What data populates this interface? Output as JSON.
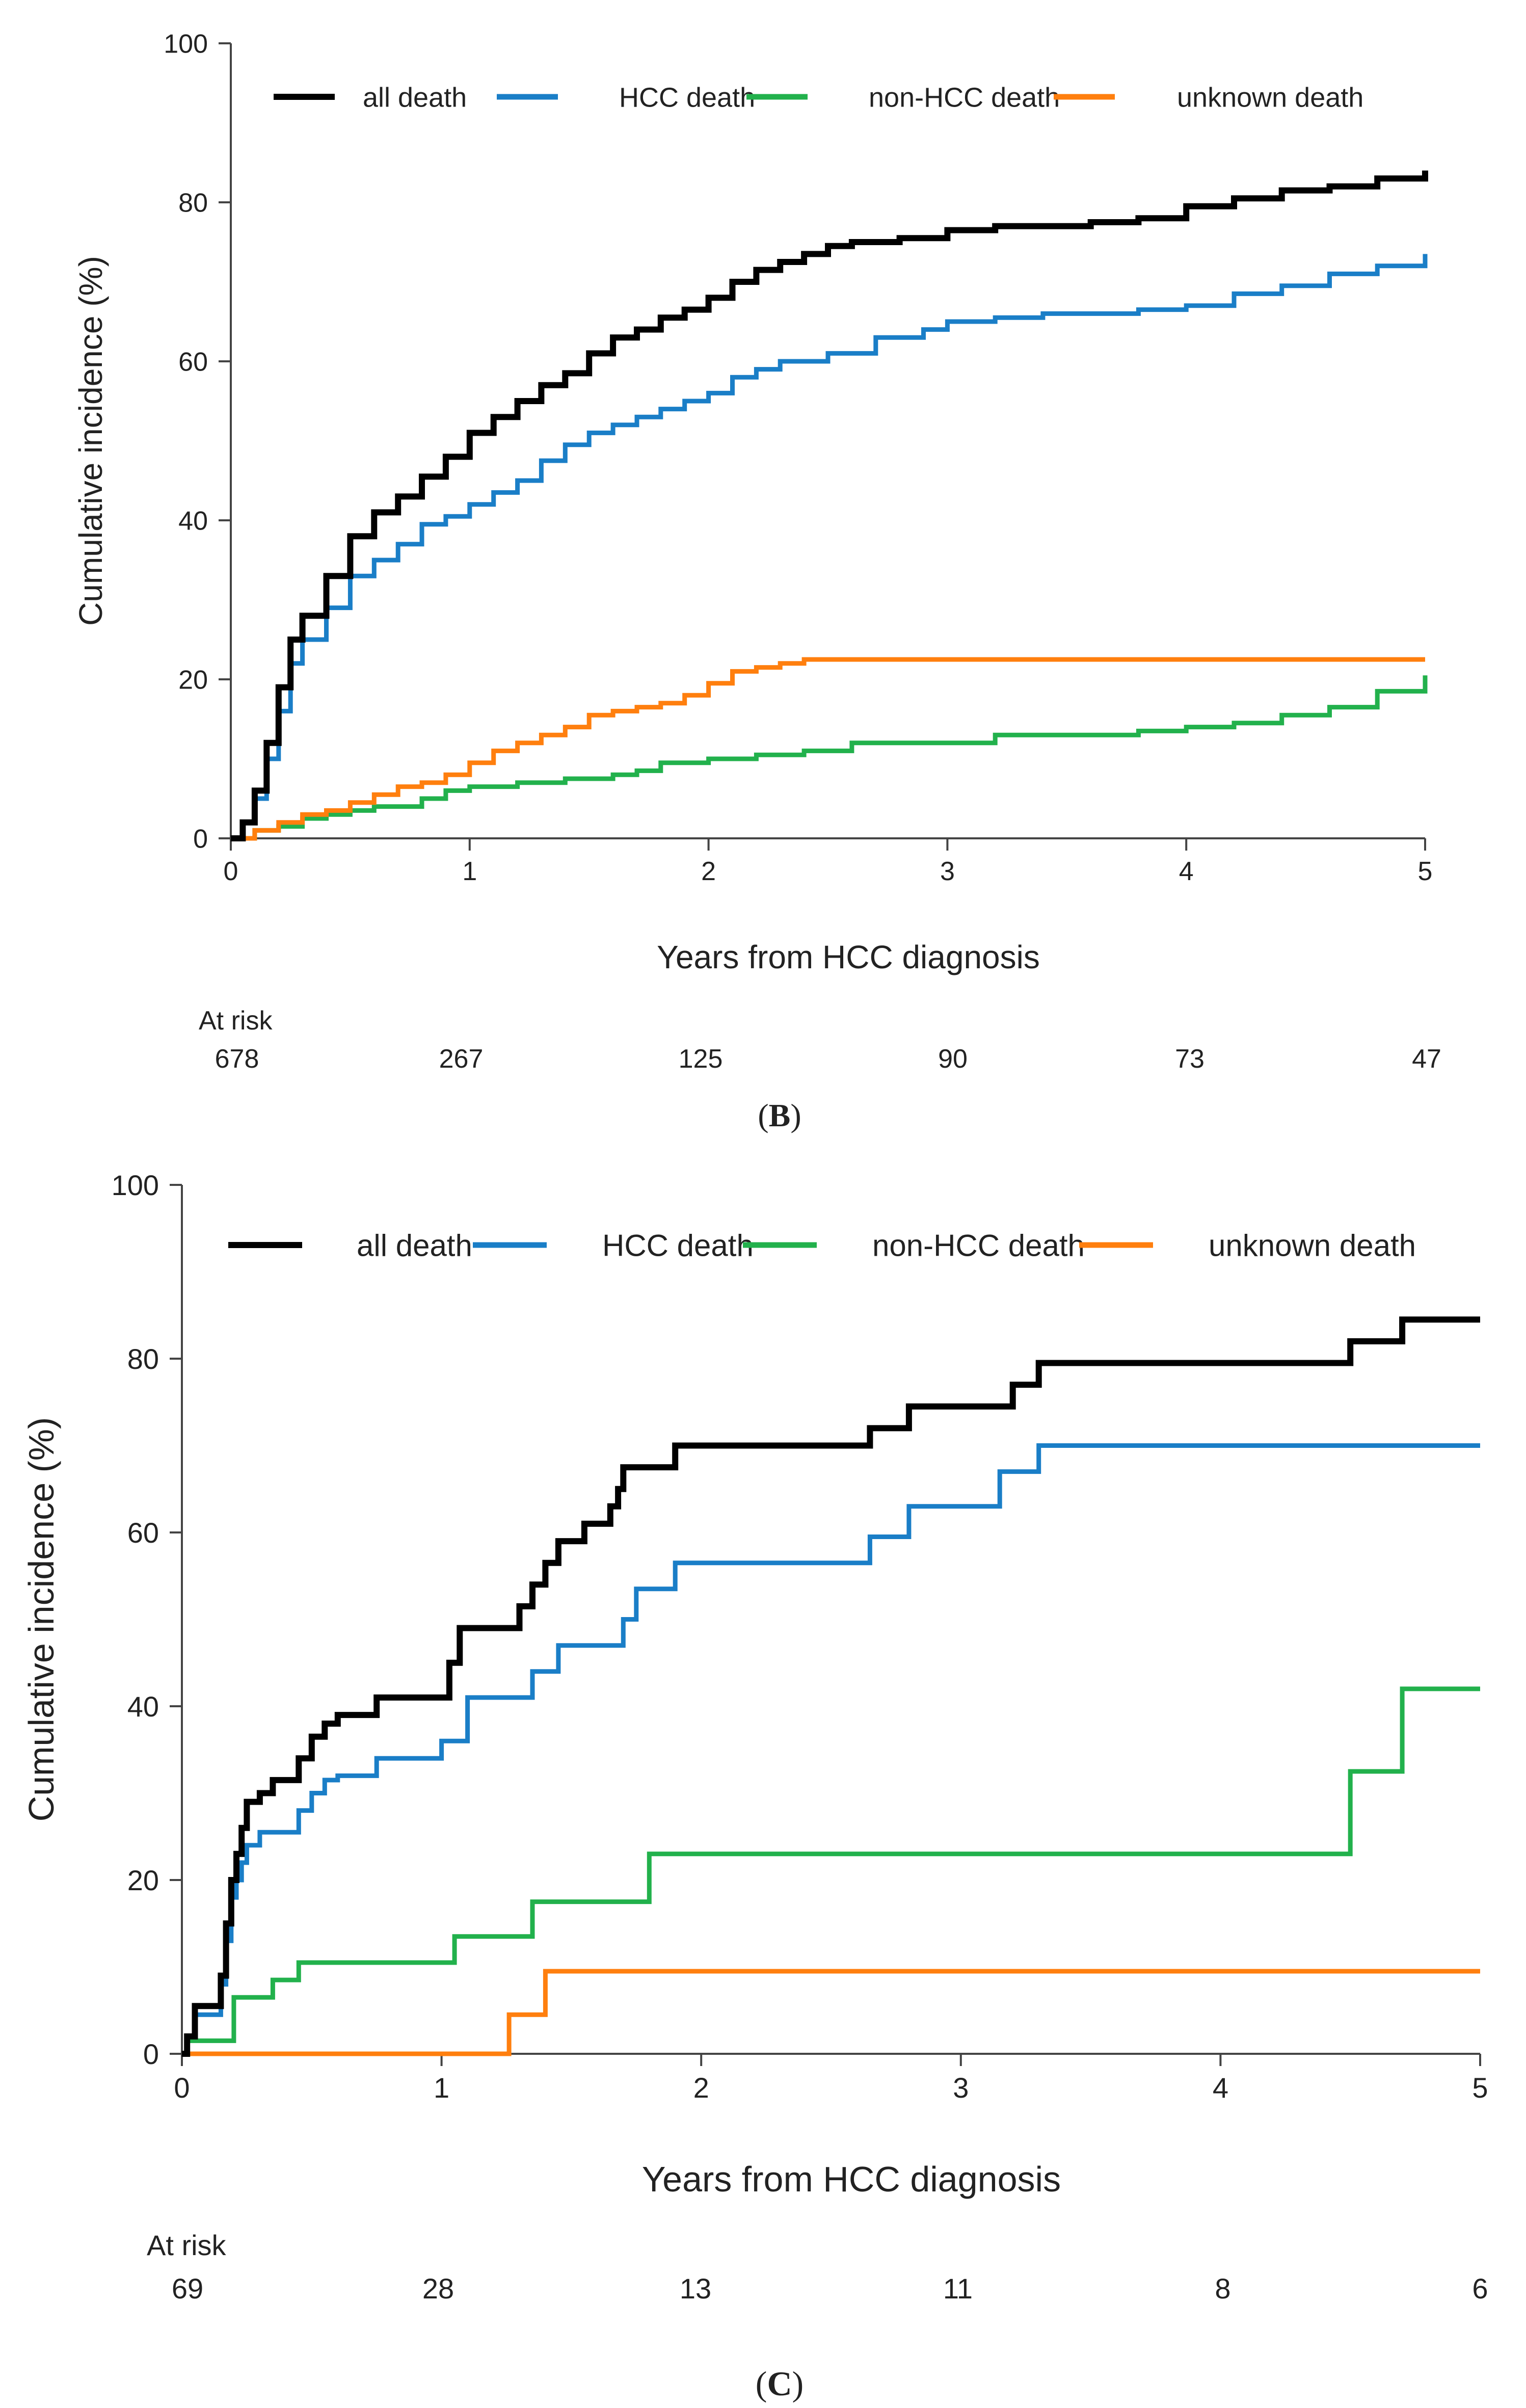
{
  "chart_data": [
    {
      "type": "line",
      "panel_label": "B",
      "title": "",
      "xlabel": "Years from HCC diagnosis",
      "ylabel": "Cumulative incidence (%)",
      "xlim": [
        0,
        5
      ],
      "ylim": [
        0,
        100
      ],
      "xticks": [
        "0",
        "1",
        "2",
        "3",
        "4",
        "5"
      ],
      "yticks": [
        "0",
        "20",
        "40",
        "60",
        "80",
        "100"
      ],
      "legend_position": "top",
      "at_risk_label": "At risk",
      "at_risk": [
        "678",
        "267",
        "125",
        "90",
        "73",
        "47"
      ],
      "series": [
        {
          "name": "all death",
          "color": "#000000",
          "x": [
            0,
            0.05,
            0.1,
            0.15,
            0.2,
            0.25,
            0.3,
            0.4,
            0.5,
            0.6,
            0.7,
            0.8,
            0.9,
            1.0,
            1.1,
            1.2,
            1.3,
            1.4,
            1.5,
            1.6,
            1.7,
            1.8,
            1.9,
            2.0,
            2.1,
            2.2,
            2.3,
            2.4,
            2.5,
            2.6,
            2.8,
            3.0,
            3.2,
            3.4,
            3.6,
            3.8,
            4.0,
            4.2,
            4.4,
            4.6,
            4.8,
            5.0
          ],
          "y": [
            0,
            2,
            6,
            12,
            19,
            25,
            28,
            33,
            38,
            41,
            43,
            45.5,
            48,
            51,
            53,
            55,
            57,
            58.5,
            61,
            63,
            64,
            65.5,
            66.5,
            68,
            70,
            71.5,
            72.5,
            73.5,
            74.5,
            75,
            75.5,
            76.5,
            77,
            77,
            77.5,
            78,
            79.5,
            80.5,
            81.5,
            82,
            83,
            84
          ]
        },
        {
          "name": "HCC death",
          "color": "#1a7ec7",
          "x": [
            0,
            0.05,
            0.1,
            0.15,
            0.2,
            0.25,
            0.3,
            0.4,
            0.5,
            0.6,
            0.7,
            0.8,
            0.9,
            1.0,
            1.1,
            1.2,
            1.3,
            1.4,
            1.5,
            1.6,
            1.7,
            1.8,
            1.9,
            2.0,
            2.1,
            2.2,
            2.3,
            2.5,
            2.7,
            2.9,
            3.0,
            3.2,
            3.4,
            3.6,
            3.8,
            4.0,
            4.2,
            4.4,
            4.6,
            4.8,
            5.0
          ],
          "y": [
            0,
            2,
            5,
            10,
            16,
            22,
            25,
            29,
            33,
            35,
            37,
            39.5,
            40.5,
            42,
            43.5,
            45,
            47.5,
            49.5,
            51,
            52,
            53,
            54,
            55,
            56,
            58,
            59,
            60,
            61,
            63,
            64,
            65,
            65.5,
            66,
            66,
            66.5,
            67,
            68.5,
            69.5,
            71,
            72,
            73.5
          ]
        },
        {
          "name": "non-HCC death",
          "color": "#22b14c",
          "x": [
            0,
            0.1,
            0.2,
            0.3,
            0.4,
            0.5,
            0.6,
            0.7,
            0.8,
            0.9,
            1.0,
            1.2,
            1.4,
            1.6,
            1.7,
            1.8,
            2.0,
            2.2,
            2.4,
            2.6,
            2.8,
            3.0,
            3.2,
            3.4,
            3.6,
            3.8,
            4.0,
            4.2,
            4.4,
            4.6,
            4.8,
            5.0
          ],
          "y": [
            0,
            1,
            1.5,
            2.5,
            3,
            3.5,
            4,
            4,
            5,
            6,
            6.5,
            7,
            7.5,
            8,
            8.5,
            9.5,
            10,
            10.5,
            11,
            12,
            12,
            12,
            13,
            13,
            13,
            13.5,
            14,
            14.5,
            15.5,
            16.5,
            18.5,
            20.5
          ]
        },
        {
          "name": "unknown death",
          "color": "#ff7f0e",
          "x": [
            0,
            0.1,
            0.2,
            0.3,
            0.4,
            0.5,
            0.6,
            0.7,
            0.8,
            0.9,
            1.0,
            1.1,
            1.2,
            1.3,
            1.4,
            1.5,
            1.6,
            1.7,
            1.8,
            1.9,
            2.0,
            2.1,
            2.2,
            2.3,
            2.4,
            2.5,
            3.0,
            3.5,
            4.0,
            4.5,
            5.0
          ],
          "y": [
            0,
            1,
            2,
            3,
            3.5,
            4.5,
            5.5,
            6.5,
            7,
            8,
            9.5,
            11,
            12,
            13,
            14,
            15.5,
            16,
            16.5,
            17,
            18,
            19.5,
            21,
            21.5,
            22,
            22.5,
            22.5,
            22.5,
            22.5,
            22.5,
            22.5,
            22.5
          ]
        }
      ]
    },
    {
      "type": "line",
      "panel_label": "C",
      "title": "",
      "xlabel": "Years from HCC diagnosis",
      "ylabel": "Cumulative incidence (%)",
      "xlim": [
        0,
        5
      ],
      "ylim": [
        0,
        100
      ],
      "xticks": [
        "0",
        "1",
        "2",
        "3",
        "4",
        "5"
      ],
      "yticks": [
        "0",
        "20",
        "40",
        "60",
        "80",
        "100"
      ],
      "legend_position": "top",
      "at_risk_label": "At risk",
      "at_risk": [
        "69",
        "28",
        "13",
        "11",
        "8",
        "6"
      ],
      "series": [
        {
          "name": "all death",
          "color": "#000000",
          "x": [
            0,
            0.02,
            0.05,
            0.1,
            0.15,
            0.17,
            0.19,
            0.21,
            0.23,
            0.25,
            0.3,
            0.35,
            0.45,
            0.5,
            0.55,
            0.6,
            0.75,
            1.0,
            1.03,
            1.07,
            1.25,
            1.3,
            1.35,
            1.4,
            1.45,
            1.55,
            1.58,
            1.65,
            1.68,
            1.7,
            1.9,
            2.2,
            2.65,
            2.8,
            3.0,
            3.2,
            3.3,
            3.6,
            4.0,
            4.2,
            4.5,
            4.7,
            5.0
          ],
          "y": [
            0,
            2,
            5.5,
            5.5,
            9,
            15,
            20,
            23,
            26,
            29,
            30,
            31.5,
            34,
            36.5,
            38,
            39,
            41,
            41,
            45,
            49,
            49,
            51.5,
            54,
            56.5,
            59,
            61,
            61,
            63,
            65,
            67.5,
            70,
            70,
            72,
            74.5,
            74.5,
            77,
            79.5,
            79.5,
            79.5,
            79.5,
            82,
            84.5,
            84.5
          ]
        },
        {
          "name": "HCC death",
          "color": "#1a7ec7",
          "x": [
            0,
            0.02,
            0.05,
            0.1,
            0.15,
            0.17,
            0.19,
            0.21,
            0.23,
            0.25,
            0.3,
            0.4,
            0.45,
            0.5,
            0.55,
            0.6,
            0.75,
            0.95,
            1.0,
            1.1,
            1.2,
            1.35,
            1.45,
            1.55,
            1.7,
            1.75,
            1.9,
            2.2,
            2.65,
            2.8,
            3.0,
            3.15,
            3.3,
            4.0,
            4.5,
            5.0
          ],
          "y": [
            0,
            2,
            4.5,
            4.5,
            8,
            13,
            18,
            20,
            22,
            24,
            25.5,
            25.5,
            28,
            30,
            31.5,
            32,
            34,
            34,
            36,
            41,
            41,
            44,
            47,
            47,
            50,
            53.5,
            56.5,
            56.5,
            59.5,
            63,
            63,
            67,
            70,
            70,
            70,
            70
          ]
        },
        {
          "name": "non-HCC death",
          "color": "#22b14c",
          "x": [
            0,
            0.02,
            0.1,
            0.15,
            0.2,
            0.35,
            0.45,
            0.5,
            1.0,
            1.05,
            1.3,
            1.35,
            1.75,
            1.8,
            2.2,
            3.0,
            4.0,
            4.45,
            4.5,
            4.65,
            4.7,
            5.0
          ],
          "y": [
            0,
            1.5,
            1.5,
            1.5,
            6.5,
            8.5,
            10.5,
            10.5,
            10.5,
            13.5,
            13.5,
            17.5,
            17.5,
            23,
            23,
            23,
            23,
            23,
            32.5,
            32.5,
            42,
            42
          ]
        },
        {
          "name": "unknown death",
          "color": "#ff7f0e",
          "x": [
            0,
            0.5,
            1.0,
            1.24,
            1.26,
            1.38,
            1.4,
            2.0,
            3.0,
            4.0,
            5.0
          ],
          "y": [
            0,
            0,
            0,
            0,
            4.5,
            4.5,
            9.5,
            9.5,
            9.5,
            9.5,
            9.5
          ]
        }
      ]
    }
  ]
}
